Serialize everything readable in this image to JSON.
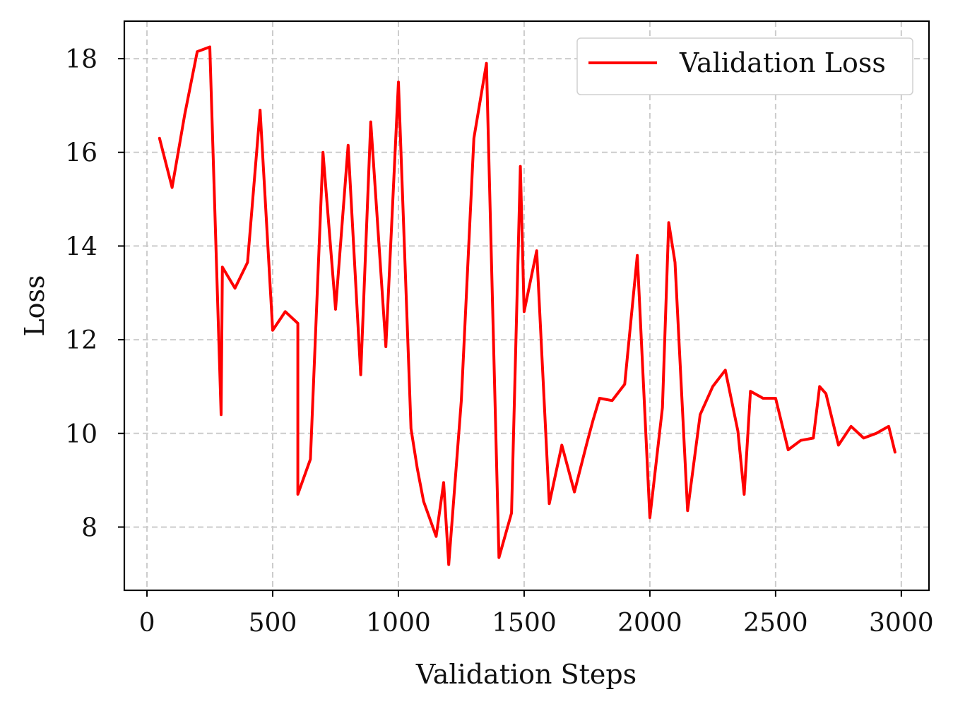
{
  "chart_data": {
    "type": "line",
    "title": "",
    "xlabel": "Validation Steps",
    "ylabel": "Loss",
    "xlim": [
      -90,
      3110
    ],
    "ylim": [
      6.65,
      18.8
    ],
    "xticks": [
      0,
      500,
      1000,
      1500,
      2000,
      2500,
      3000
    ],
    "xtick_labels": [
      "0",
      "500",
      "1000",
      "1500",
      "2000",
      "2500",
      "3000"
    ],
    "yticks": [
      8,
      10,
      12,
      14,
      16,
      18
    ],
    "ytick_labels": [
      "8",
      "10",
      "12",
      "14",
      "16",
      "18"
    ],
    "grid": true,
    "legend": {
      "position": "top-right",
      "entries": [
        "Validation Loss"
      ]
    },
    "series": [
      {
        "name": "Validation Loss",
        "color": "#ff0000",
        "x": [
          50,
          100,
          150,
          200,
          250,
          295,
          300,
          350,
          400,
          450,
          500,
          550,
          600,
          600,
          650,
          700,
          750,
          800,
          850,
          890,
          950,
          1000,
          1050,
          1075,
          1100,
          1150,
          1180,
          1200,
          1250,
          1300,
          1350,
          1400,
          1450,
          1485,
          1500,
          1550,
          1600,
          1650,
          1700,
          1750,
          1775,
          1800,
          1850,
          1900,
          1950,
          2000,
          2050,
          2075,
          2100,
          2150,
          2200,
          2250,
          2300,
          2350,
          2375,
          2400,
          2450,
          2500,
          2550,
          2600,
          2650,
          2675,
          2700,
          2750,
          2800,
          2850,
          2900,
          2950,
          2975
        ],
        "y": [
          16.3,
          15.25,
          16.8,
          18.15,
          18.25,
          10.4,
          13.55,
          13.1,
          13.65,
          16.9,
          12.2,
          12.6,
          12.35,
          8.7,
          9.45,
          16.0,
          12.65,
          16.15,
          11.25,
          16.65,
          11.85,
          17.5,
          10.1,
          9.25,
          8.55,
          7.8,
          8.95,
          7.2,
          10.7,
          16.3,
          17.9,
          7.35,
          8.3,
          15.7,
          12.6,
          13.9,
          8.5,
          9.75,
          8.75,
          9.8,
          10.3,
          10.75,
          10.7,
          11.05,
          13.8,
          8.2,
          10.55,
          14.5,
          13.65,
          8.35,
          10.4,
          11.0,
          11.35,
          10.05,
          8.7,
          10.9,
          10.75,
          10.75,
          9.65,
          9.85,
          9.9,
          11.0,
          10.85,
          9.75,
          10.15,
          9.9,
          10.0,
          10.15,
          9.6
        ]
      }
    ]
  }
}
